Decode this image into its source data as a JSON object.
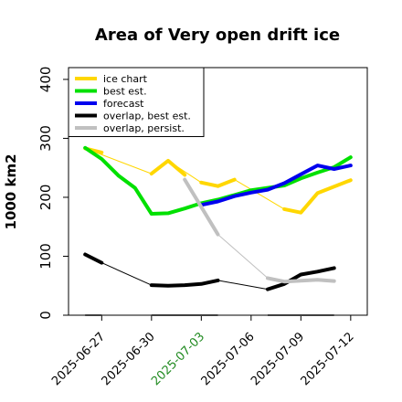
{
  "chart_data": {
    "type": "line",
    "title": "Area of Very open drift ice",
    "ylabel": "1000 km2",
    "xlabel": "",
    "ylim": [
      0,
      420
    ],
    "yticks": [
      0,
      100,
      200,
      300,
      400
    ],
    "xlim": [
      "2025-06-25",
      "2025-07-13"
    ],
    "xticks": [
      {
        "date": "2025-06-27",
        "label": "2025-06-27",
        "color": "#000000"
      },
      {
        "date": "2025-06-30",
        "label": "2025-06-30",
        "color": "#000000"
      },
      {
        "date": "2025-07-03",
        "label": "2025-07-03",
        "color": "#228b22"
      },
      {
        "date": "2025-07-06",
        "label": "2025-07-06",
        "color": "#000000"
      },
      {
        "date": "2025-07-09",
        "label": "2025-07-09",
        "color": "#000000"
      },
      {
        "date": "2025-07-12",
        "label": "2025-07-12",
        "color": "#000000"
      }
    ],
    "grid": false,
    "legend_position": "top-left",
    "series": [
      {
        "name": "ice chart",
        "color": "#ffd700",
        "style": "thin-and-thick",
        "points": [
          [
            "2025-06-26",
            283
          ],
          [
            "2025-06-30",
            240
          ],
          [
            "2025-07-01",
            262
          ],
          [
            "2025-07-03",
            225
          ],
          [
            "2025-07-04",
            219
          ],
          [
            "2025-07-05",
            230
          ],
          [
            "2025-07-08",
            180
          ],
          [
            "2025-07-09",
            174
          ],
          [
            "2025-07-10",
            207
          ],
          [
            "2025-07-12",
            229
          ]
        ],
        "thick_segments": [
          [
            [
              "2025-06-26",
              283
            ],
            [
              "2025-06-27",
              276
            ]
          ],
          [
            [
              "2025-06-30",
              240
            ],
            [
              "2025-07-01",
              262
            ],
            [
              "2025-07-02",
              238
            ]
          ],
          [
            [
              "2025-07-03",
              225
            ],
            [
              "2025-07-04",
              219
            ],
            [
              "2025-07-05",
              230
            ]
          ],
          [
            [
              "2025-07-08",
              180
            ],
            [
              "2025-07-09",
              174
            ],
            [
              "2025-07-10",
              207
            ],
            [
              "2025-07-12",
              229
            ]
          ]
        ]
      },
      {
        "name": "best est.",
        "color": "#00e000",
        "style": "thick",
        "points": [
          [
            "2025-06-26",
            284
          ],
          [
            "2025-06-27",
            265
          ],
          [
            "2025-06-28",
            237
          ],
          [
            "2025-06-29",
            216
          ],
          [
            "2025-06-30",
            172
          ],
          [
            "2025-07-01",
            173
          ],
          [
            "2025-07-02",
            181
          ],
          [
            "2025-07-03",
            190
          ],
          [
            "2025-07-04",
            196
          ],
          [
            "2025-07-05",
            204
          ],
          [
            "2025-07-06",
            212
          ],
          [
            "2025-07-07",
            216
          ],
          [
            "2025-07-08",
            220
          ],
          [
            "2025-07-09",
            232
          ],
          [
            "2025-07-10",
            242
          ],
          [
            "2025-07-11",
            251
          ],
          [
            "2025-07-12",
            268
          ]
        ]
      },
      {
        "name": "forecast",
        "color": "#0000ee",
        "style": "thick",
        "points": [
          [
            "2025-07-03",
            187
          ],
          [
            "2025-07-04",
            193
          ],
          [
            "2025-07-05",
            202
          ],
          [
            "2025-07-06",
            208
          ],
          [
            "2025-07-07",
            213
          ],
          [
            "2025-07-08",
            224
          ],
          [
            "2025-07-09",
            239
          ],
          [
            "2025-07-10",
            254
          ],
          [
            "2025-07-11",
            248
          ],
          [
            "2025-07-12",
            254
          ]
        ]
      },
      {
        "name": "overlap, best est.",
        "color": "#000000",
        "style": "thin-and-thick",
        "points": [
          [
            "2025-06-26",
            103
          ],
          [
            "2025-06-27",
            89
          ],
          [
            "2025-06-30",
            51
          ],
          [
            "2025-07-01",
            50
          ],
          [
            "2025-07-02",
            51
          ],
          [
            "2025-07-03",
            53
          ],
          [
            "2025-07-04",
            59
          ],
          [
            "2025-07-07",
            44
          ],
          [
            "2025-07-08",
            53
          ],
          [
            "2025-07-09",
            69
          ],
          [
            "2025-07-10",
            74
          ],
          [
            "2025-07-11",
            80
          ]
        ],
        "thick_segments": [
          [
            [
              "2025-06-26",
              103
            ],
            [
              "2025-06-27",
              89
            ]
          ],
          [
            [
              "2025-06-30",
              51
            ],
            [
              "2025-07-01",
              50
            ],
            [
              "2025-07-02",
              51
            ],
            [
              "2025-07-03",
              53
            ],
            [
              "2025-07-04",
              59
            ]
          ],
          [
            [
              "2025-07-07",
              44
            ],
            [
              "2025-07-08",
              53
            ],
            [
              "2025-07-09",
              69
            ],
            [
              "2025-07-10",
              74
            ],
            [
              "2025-07-11",
              80
            ]
          ]
        ]
      },
      {
        "name": "overlap, persist.",
        "color": "#c0c0c0",
        "style": "thin-and-thick",
        "points": [
          [
            "2025-07-02",
            230
          ],
          [
            "2025-07-04",
            137
          ],
          [
            "2025-07-07",
            63
          ],
          [
            "2025-07-08",
            57
          ],
          [
            "2025-07-10",
            60
          ],
          [
            "2025-07-11",
            58
          ]
        ],
        "thick_segments": [
          [
            [
              "2025-07-02",
              230
            ],
            [
              "2025-07-04",
              137
            ]
          ],
          [
            [
              "2025-07-07",
              63
            ],
            [
              "2025-07-08",
              57
            ],
            [
              "2025-07-10",
              60
            ],
            [
              "2025-07-11",
              58
            ]
          ]
        ]
      }
    ],
    "zero_markers": {
      "color": "#808080",
      "value": 0,
      "segments": [
        [
          "2025-06-26",
          "2025-06-27"
        ],
        [
          "2025-06-30",
          "2025-07-04"
        ],
        [
          "2025-07-07",
          "2025-07-11"
        ]
      ]
    }
  }
}
